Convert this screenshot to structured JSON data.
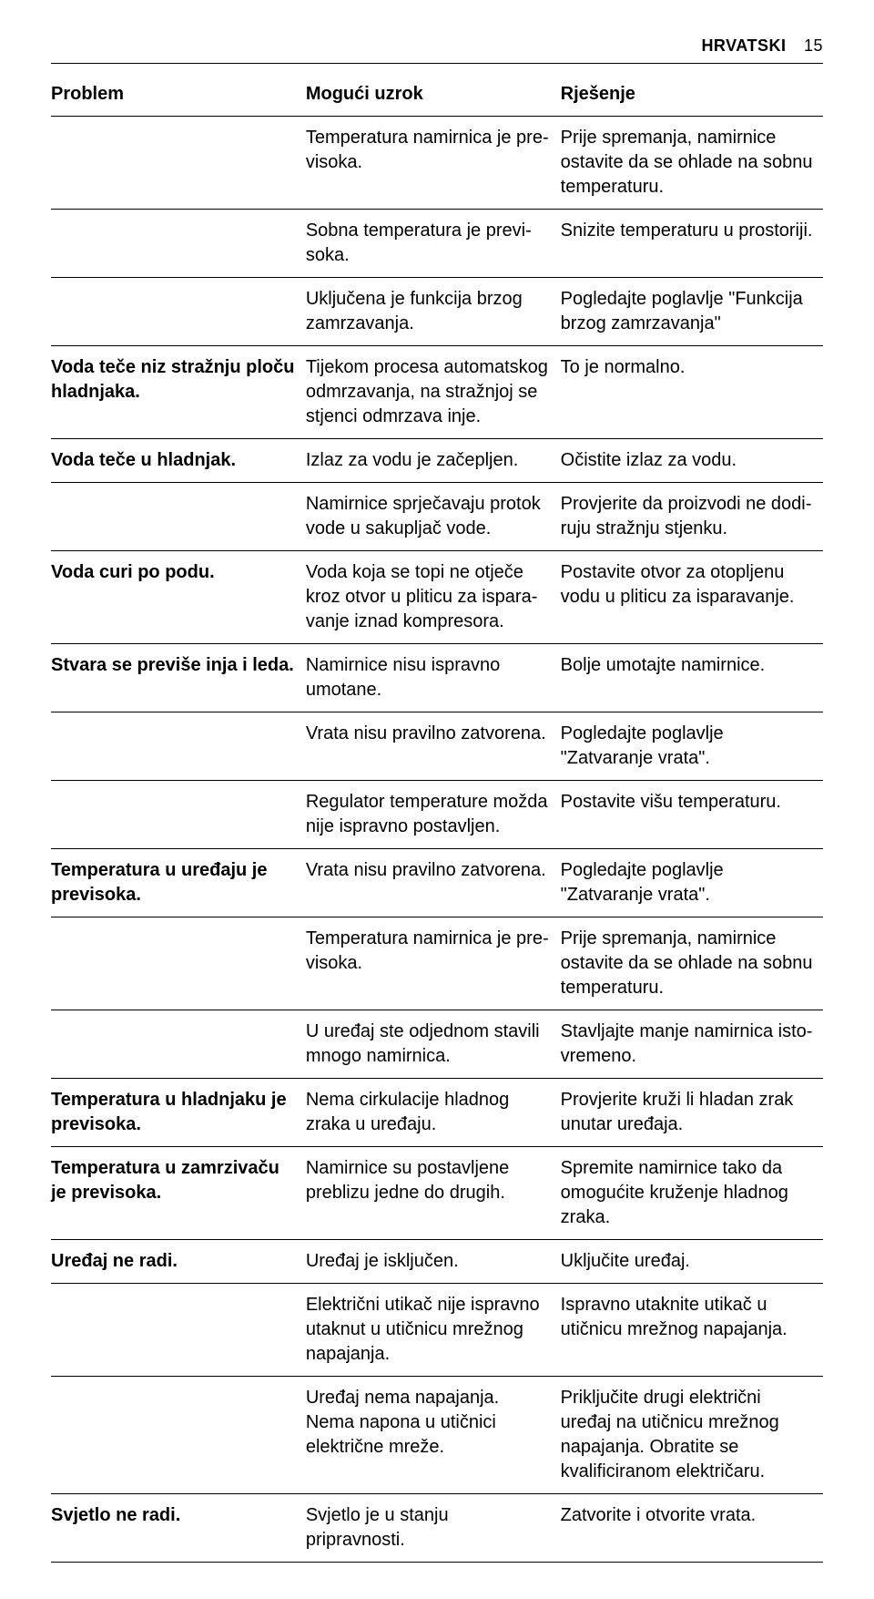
{
  "header": {
    "language": "HRVATSKI",
    "page_number": "15"
  },
  "table": {
    "columns": [
      "Problem",
      "Mogući uzrok",
      "Rješenje"
    ],
    "rows": [
      {
        "problem": "",
        "cause": "Temperatura namirnica je pre­visoka.",
        "solution": "Prije spremanja, namirnice osta­vite da se ohlade na sobnu temperaturu."
      },
      {
        "problem": "",
        "cause": "Sobna temperatura je previ­soka.",
        "solution": "Snizite temperaturu u prostoriji."
      },
      {
        "problem": "",
        "cause": " Uključena je funkcija brzog zamrzavanja.",
        "solution": "Pogledajte poglavlje \"Funkcija brzog zamrzavanja\""
      },
      {
        "problem": "Voda teče niz stražnju ploču hladnjaka.",
        "cause": "Tijekom procesa automatskog odmrzavanja, na stražnjoj se stjenci odmrzava inje.",
        "solution": "To je normalno."
      },
      {
        "problem": "Voda teče u hladnjak.",
        "cause": "Izlaz za vodu je začepljen.",
        "solution": "Očistite izlaz za vodu."
      },
      {
        "problem": "",
        "cause": "Namirnice sprječavaju protok vode u sakupljač vode.",
        "solution": "Provjerite da proizvodi ne dodi­ruju stražnju stjenku."
      },
      {
        "problem": "Voda curi po podu.",
        "cause": "Voda koja se topi ne otječe kroz otvor u pliticu za ispara­vanje iznad kompresora.",
        "solution": "Postavite otvor za otopljenu vo­du u pliticu za isparavanje."
      },
      {
        "problem": "Stvara se previše inja i leda.",
        "cause": "Namirnice nisu ispravno umotane.",
        "solution": "Bolje umotajte namirnice."
      },
      {
        "problem": "",
        "cause": "Vrata nisu pravilno zatvorena.",
        "solution": "Pogledajte poglavlje \"Zatvaranje vrata\"."
      },
      {
        "problem": "",
        "cause": "Regulator temperature možda nije ispravno postavljen.",
        "solution": "Postavite višu temperaturu."
      },
      {
        "problem": "Temperatura u uređaju je previsoka.",
        "cause": "Vrata nisu pravilno zatvorena.",
        "solution": "Pogledajte poglavlje \"Zatvaranje vrata\"."
      },
      {
        "problem": "",
        "cause": "Temperatura namirnica je pre­visoka.",
        "solution": "Prije spremanja, namirnice osta­vite da se ohlade na sobnu temperaturu."
      },
      {
        "problem": "",
        "cause": "U uređaj ste odjednom stavili mnogo namirnica.",
        "solution": "Stavljajte manje namirnica isto­vremeno."
      },
      {
        "problem": "Temperatura u hladnjaku je previsoka.",
        "cause": "Nema cirkulacije hladnog zraka u uređaju.",
        "solution": "Provjerite kruži li hladan zrak unutar uređaja."
      },
      {
        "problem": "Temperatura u zamrzivaču je previsoka.",
        "cause": "Namirnice su postavljene preblizu jedne do drugih.",
        "solution": "Spremite namirnice tako da omogućite kruženje hladnog zraka."
      },
      {
        "problem": "Uređaj ne radi.",
        "cause": "Uređaj je isključen.",
        "solution": "Uključite uređaj."
      },
      {
        "problem": "",
        "cause": "Električni utikač nije ispravno utaknut u utičnicu mrežnog na­pajanja.",
        "solution": "Ispravno utaknite utikač u utični­cu mrežnog napajanja."
      },
      {
        "problem": "",
        "cause": "Uređaj nema napajanja. Nema napona u utičnici električne mreže.",
        "solution": "Priključite drugi električni uređaj na utičnicu mrežnog napajanja. Obratite se kvalificiranom električaru."
      },
      {
        "problem": "Svjetlo ne radi.",
        "cause": "Svjetlo je u stanju pripravnosti.",
        "solution": "Zatvorite i otvorite vrata."
      }
    ]
  }
}
